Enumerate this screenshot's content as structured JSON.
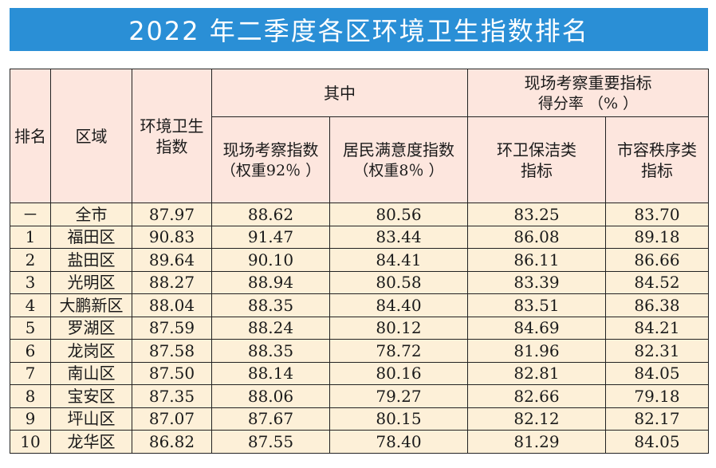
{
  "title": "2022 年二季度各区环境卫生指数排名",
  "colors": {
    "banner": "#2a8fd6",
    "header_bg": "#fde6de",
    "body_bg": "#fdf0d8",
    "border": "#222222"
  },
  "headers": {
    "rank": "排名",
    "district": "区域",
    "index_line1": "环境卫生",
    "index_line2": "指数",
    "group_a": "其中",
    "site_line1": "现场考察指数",
    "site_line2": "（权重92％ ）",
    "resident_line1": "居民满意度指数",
    "resident_line2": "（权重8％ ）",
    "group_b_line1": "现场考察重要指标",
    "group_b_line2": "得分率 （% ）",
    "clean_line1": "环卫保洁类",
    "clean_line2": "指标",
    "order_line1": "市容秩序类",
    "order_line2": "指标"
  },
  "rows": [
    {
      "rank": "－",
      "district": "全市",
      "index": "87.97",
      "site": "88.62",
      "resident": "80.56",
      "clean": "83.25",
      "order": "83.70"
    },
    {
      "rank": "1",
      "district": "福田区",
      "index": "90.83",
      "site": "91.47",
      "resident": "83.44",
      "clean": "86.08",
      "order": "89.18"
    },
    {
      "rank": "2",
      "district": "盐田区",
      "index": "89.64",
      "site": "90.10",
      "resident": "84.41",
      "clean": "86.11",
      "order": "86.66"
    },
    {
      "rank": "3",
      "district": "光明区",
      "index": "88.27",
      "site": "88.94",
      "resident": "80.58",
      "clean": "83.39",
      "order": "84.52"
    },
    {
      "rank": "4",
      "district": "大鹏新区",
      "index": "88.04",
      "site": "88.35",
      "resident": "84.40",
      "clean": "83.51",
      "order": "86.38"
    },
    {
      "rank": "5",
      "district": "罗湖区",
      "index": "87.59",
      "site": "88.24",
      "resident": "80.12",
      "clean": "84.69",
      "order": "84.21"
    },
    {
      "rank": "6",
      "district": "龙岗区",
      "index": "87.58",
      "site": "88.35",
      "resident": "78.72",
      "clean": "81.96",
      "order": "82.31"
    },
    {
      "rank": "7",
      "district": "南山区",
      "index": "87.50",
      "site": "88.14",
      "resident": "80.16",
      "clean": "82.81",
      "order": "84.05"
    },
    {
      "rank": "8",
      "district": "宝安区",
      "index": "87.35",
      "site": "88.06",
      "resident": "79.27",
      "clean": "82.66",
      "order": "79.18"
    },
    {
      "rank": "9",
      "district": "坪山区",
      "index": "87.07",
      "site": "87.67",
      "resident": "80.15",
      "clean": "82.12",
      "order": "82.17"
    },
    {
      "rank": "10",
      "district": "龙华区",
      "index": "86.82",
      "site": "87.55",
      "resident": "78.40",
      "clean": "81.29",
      "order": "84.05"
    }
  ]
}
